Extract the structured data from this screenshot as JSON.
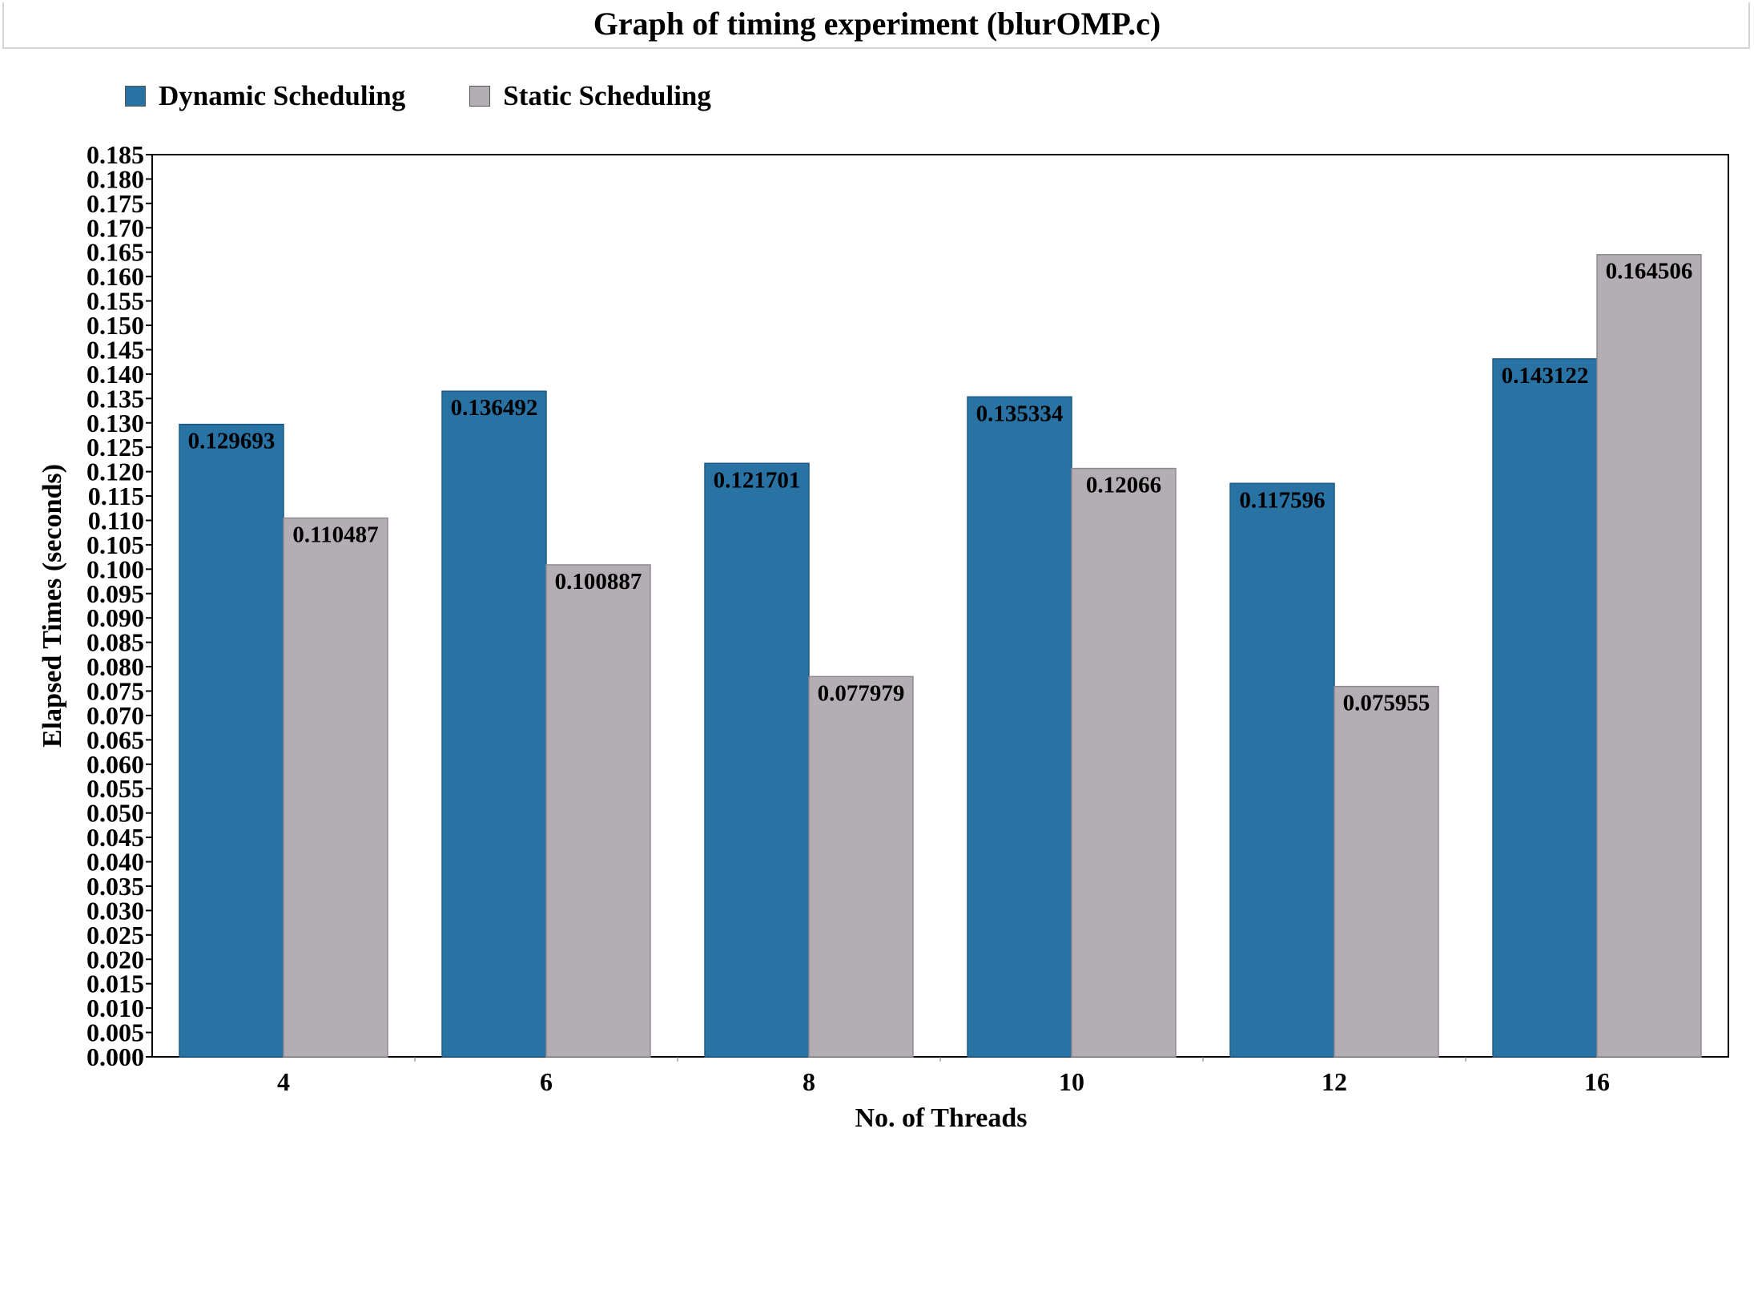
{
  "chart_data": {
    "type": "bar",
    "title": "Graph of timing experiment (blurOMP.c)",
    "xlabel": "No. of Threads",
    "ylabel": "Elapsed Times (seconds)",
    "categories": [
      "4",
      "6",
      "8",
      "10",
      "12",
      "16"
    ],
    "series": [
      {
        "name": "Dynamic Scheduling",
        "color": "#2872a4",
        "values": [
          0.129693,
          0.136492,
          0.121701,
          0.135334,
          0.117596,
          0.143122
        ],
        "labels": [
          "0.129693",
          "0.136492",
          "0.121701",
          "0.135334",
          "0.117596",
          "0.143122"
        ]
      },
      {
        "name": "Static Scheduling",
        "color": "#b3aeb3",
        "values": [
          0.110487,
          0.100887,
          0.077979,
          0.12066,
          0.075955,
          0.164506
        ],
        "labels": [
          "0.110487",
          "0.100887",
          "0.077979",
          "0.12066",
          "0.075955",
          "0.164506"
        ]
      }
    ],
    "ylim": [
      0,
      0.185
    ],
    "yticks": [
      "0.000",
      "0.005",
      "0.010",
      "0.015",
      "0.020",
      "0.025",
      "0.030",
      "0.035",
      "0.040",
      "0.045",
      "0.050",
      "0.055",
      "0.060",
      "0.065",
      "0.070",
      "0.075",
      "0.080",
      "0.085",
      "0.090",
      "0.095",
      "0.100",
      "0.105",
      "0.110",
      "0.115",
      "0.120",
      "0.125",
      "0.130",
      "0.135",
      "0.140",
      "0.145",
      "0.150",
      "0.155",
      "0.160",
      "0.165",
      "0.170",
      "0.175",
      "0.180",
      "0.185"
    ],
    "grid": false,
    "legend_position": "top-left"
  }
}
